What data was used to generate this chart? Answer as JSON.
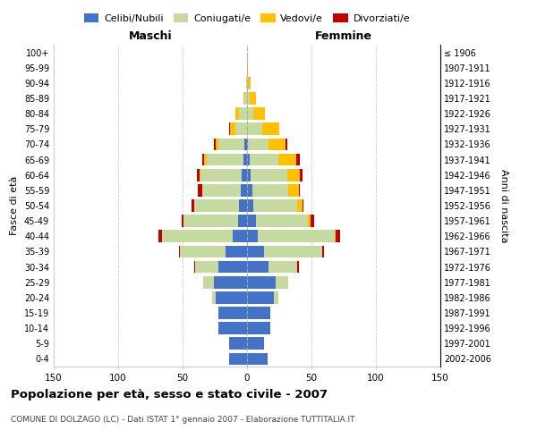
{
  "age_groups": [
    "0-4",
    "5-9",
    "10-14",
    "15-19",
    "20-24",
    "25-29",
    "30-34",
    "35-39",
    "40-44",
    "45-49",
    "50-54",
    "55-59",
    "60-64",
    "65-69",
    "70-74",
    "75-79",
    "80-84",
    "85-89",
    "90-94",
    "95-99",
    "100+"
  ],
  "birth_years": [
    "2002-2006",
    "1997-2001",
    "1992-1996",
    "1987-1991",
    "1982-1986",
    "1977-1981",
    "1972-1976",
    "1967-1971",
    "1962-1966",
    "1957-1961",
    "1952-1956",
    "1947-1951",
    "1942-1946",
    "1937-1941",
    "1932-1936",
    "1927-1931",
    "1922-1926",
    "1917-1921",
    "1912-1916",
    "1907-1911",
    "≤ 1906"
  ],
  "males": {
    "celibe": [
      14,
      14,
      22,
      22,
      24,
      26,
      22,
      17,
      11,
      7,
      6,
      5,
      4,
      3,
      2,
      0,
      0,
      0,
      0,
      0,
      0
    ],
    "coniugato": [
      0,
      0,
      0,
      0,
      3,
      8,
      18,
      35,
      55,
      42,
      35,
      30,
      32,
      28,
      20,
      9,
      6,
      2,
      1,
      0,
      0
    ],
    "vedovo": [
      0,
      0,
      0,
      0,
      0,
      0,
      0,
      0,
      0,
      0,
      0,
      0,
      1,
      2,
      2,
      4,
      3,
      1,
      0,
      0,
      0
    ],
    "divorziato": [
      0,
      0,
      0,
      0,
      0,
      0,
      1,
      1,
      3,
      2,
      2,
      3,
      2,
      2,
      2,
      1,
      0,
      0,
      0,
      0,
      0
    ]
  },
  "females": {
    "nubile": [
      16,
      13,
      18,
      18,
      21,
      22,
      17,
      13,
      8,
      7,
      5,
      4,
      3,
      2,
      1,
      0,
      0,
      0,
      0,
      0,
      0
    ],
    "coniugata": [
      0,
      0,
      0,
      0,
      3,
      10,
      22,
      45,
      60,
      40,
      34,
      28,
      28,
      22,
      16,
      12,
      5,
      2,
      1,
      0,
      0
    ],
    "vedova": [
      0,
      0,
      0,
      0,
      0,
      0,
      0,
      0,
      1,
      2,
      4,
      8,
      10,
      14,
      13,
      13,
      9,
      5,
      2,
      1,
      0
    ],
    "divorziata": [
      0,
      0,
      0,
      0,
      0,
      0,
      1,
      2,
      3,
      3,
      1,
      1,
      2,
      3,
      1,
      0,
      0,
      0,
      0,
      0,
      0
    ]
  },
  "colors": {
    "celibe": "#4472c4",
    "coniugato": "#c5d9a0",
    "vedovo": "#ffc000",
    "divorziato": "#c00000"
  },
  "xlim": 150,
  "title": "Popolazione per età, sesso e stato civile - 2007",
  "subtitle": "COMUNE DI DOLZAGO (LC) - Dati ISTAT 1° gennaio 2007 - Elaborazione TUTTITALIA.IT",
  "xlabel_left": "Maschi",
  "xlabel_right": "Femmine",
  "ylabel_left": "Fasce di età",
  "ylabel_right": "Anni di nascita",
  "legend_labels": [
    "Celibi/Nubili",
    "Coniugati/e",
    "Vedovi/e",
    "Divorziati/e"
  ],
  "bg_color": "#ffffff",
  "grid_color": "#cccccc"
}
